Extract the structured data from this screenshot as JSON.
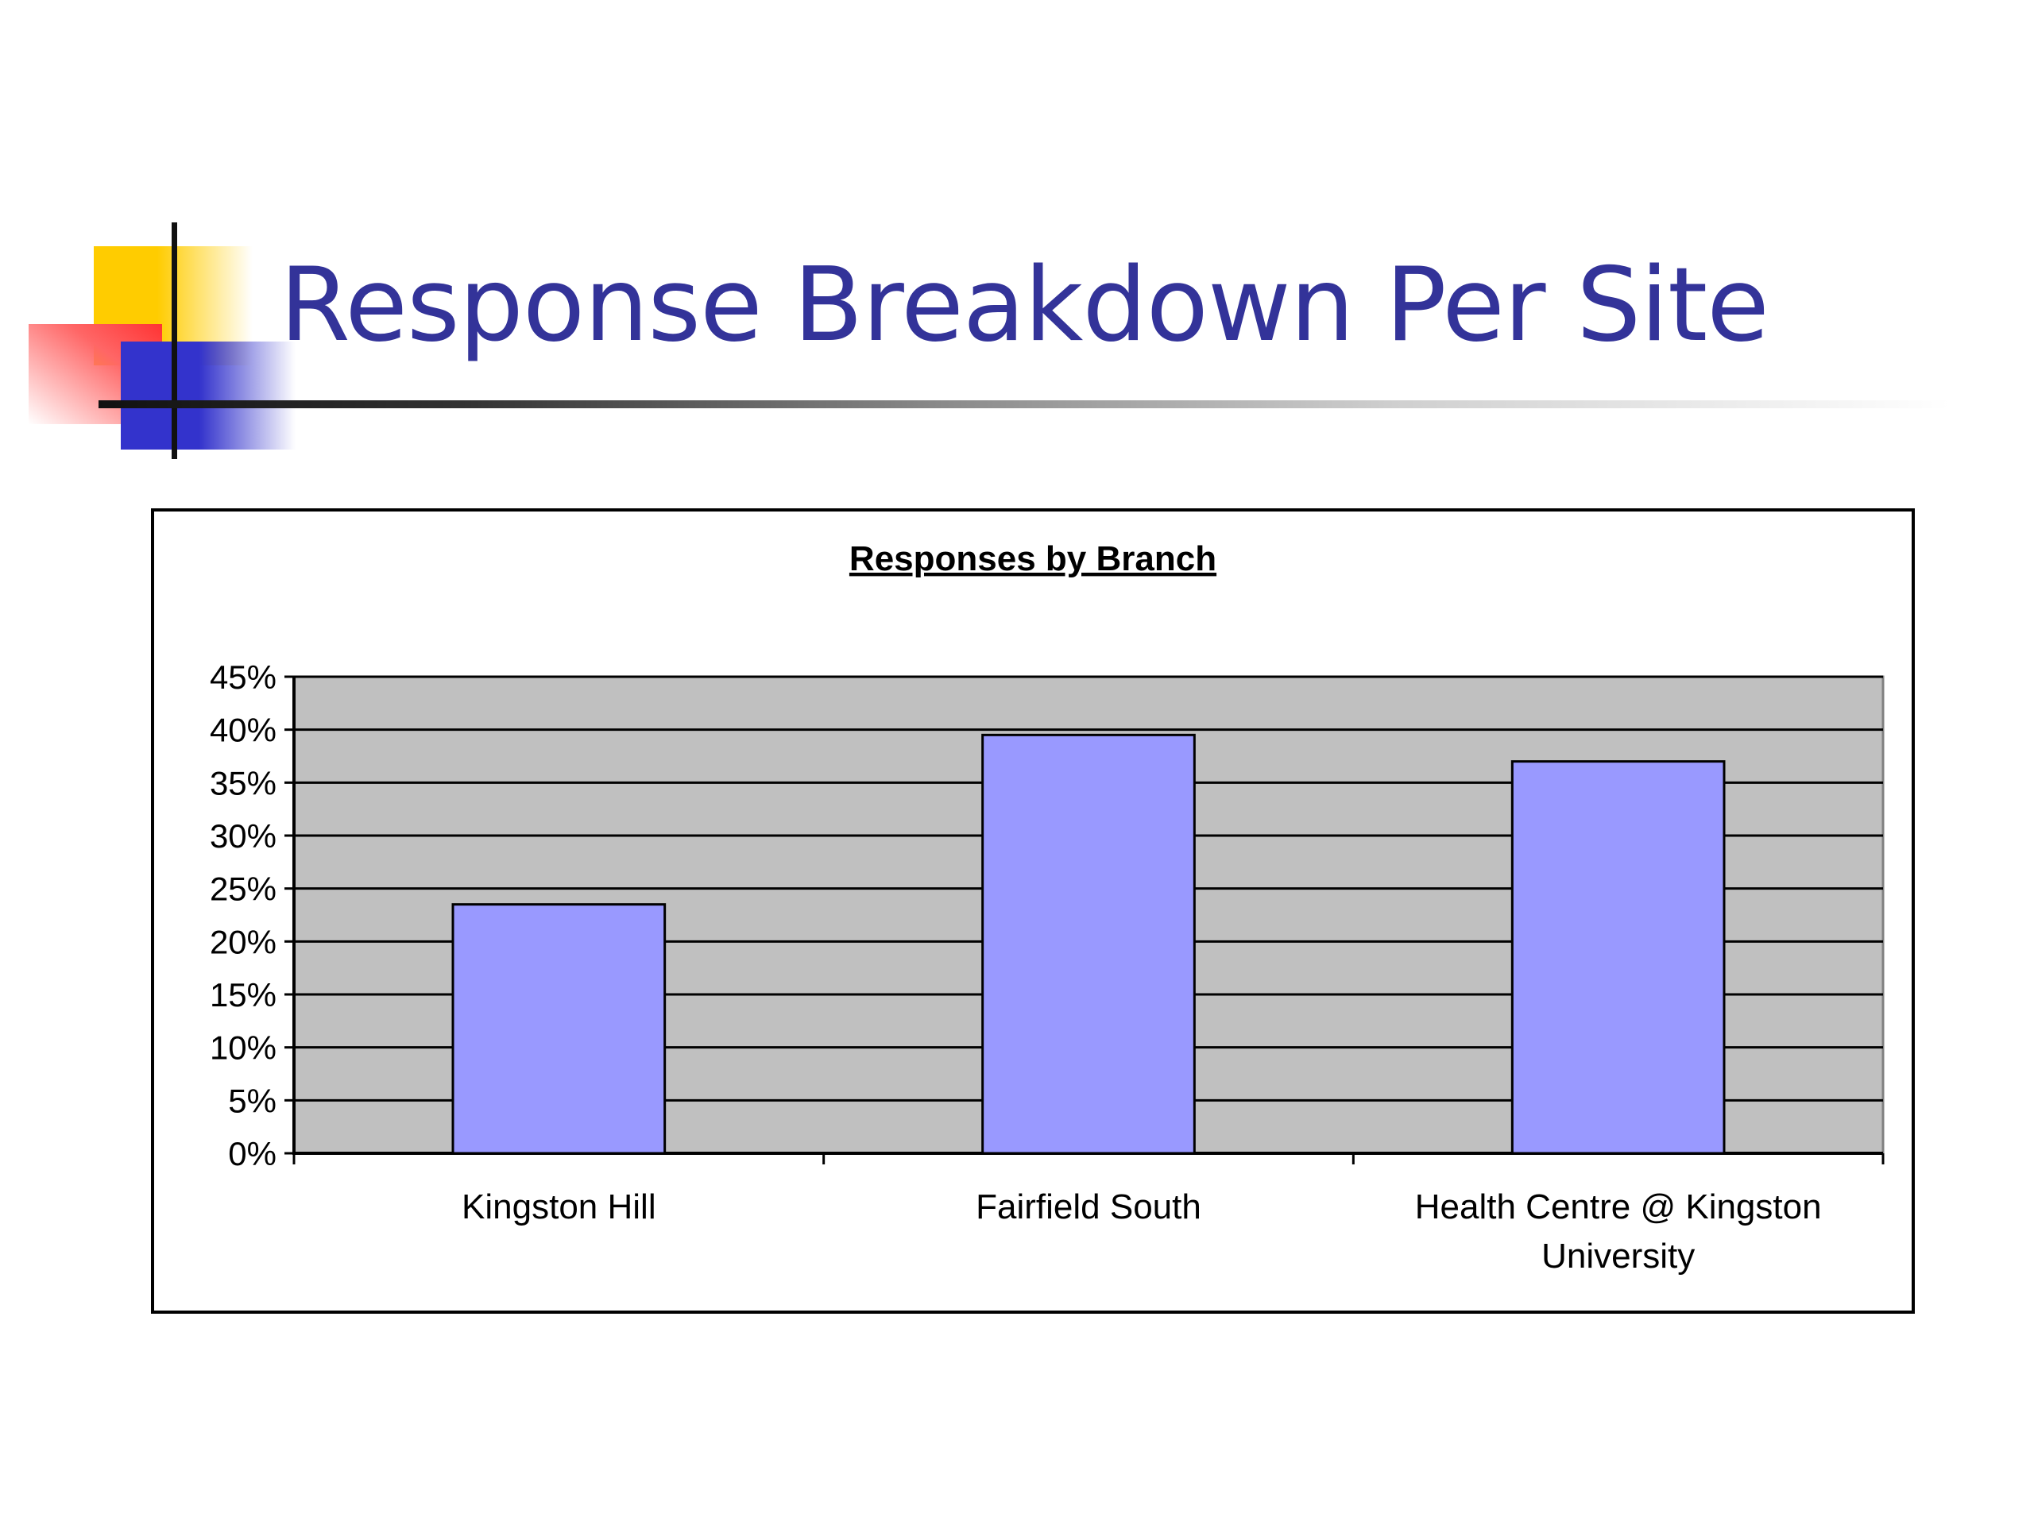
{
  "slide": {
    "title": "Response Breakdown Per Site"
  },
  "colors": {
    "title": "#333399",
    "bar_fill": "#9999ff",
    "plot_bg": "#c0c0c0",
    "gridline": "#000000"
  },
  "chart_data": {
    "type": "bar",
    "title": "Responses by Branch",
    "categories": [
      [
        "Kingston Hill"
      ],
      [
        "Fairfield South"
      ],
      [
        "Health Centre @ Kingston",
        "University"
      ]
    ],
    "values": [
      0.235,
      0.395,
      0.37
    ],
    "ylim": [
      0,
      0.45
    ],
    "y_ticks": [
      "0%",
      "5%",
      "10%",
      "15%",
      "20%",
      "25%",
      "30%",
      "35%",
      "40%",
      "45%"
    ],
    "grid": true,
    "legend": false
  }
}
